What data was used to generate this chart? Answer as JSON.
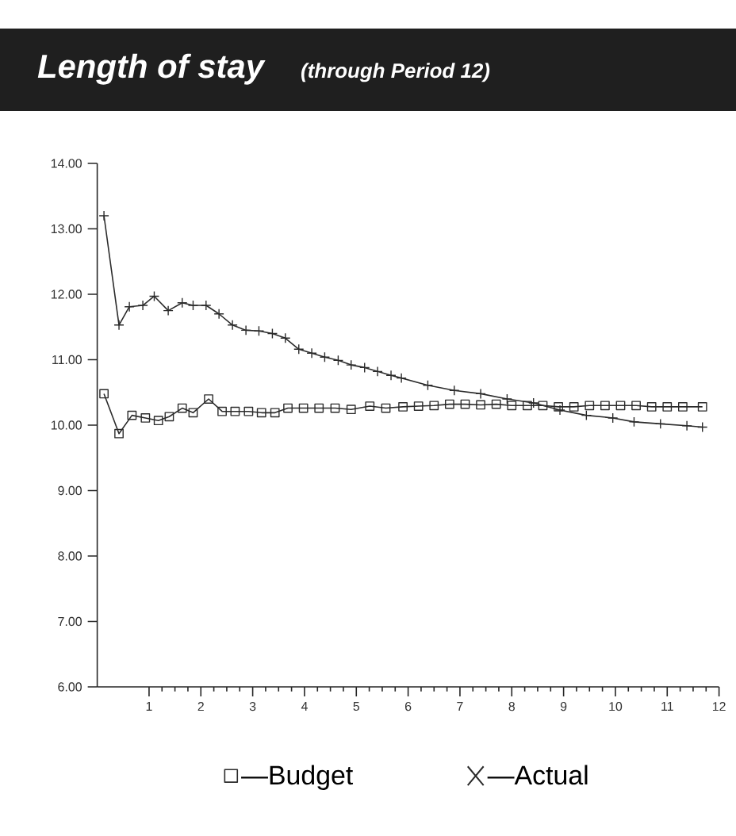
{
  "chart_data": {
    "type": "line",
    "title": "Length of stay",
    "subtitle": "(through Period 12)",
    "xlim": [
      0,
      12
    ],
    "xticks": [
      1,
      2,
      3,
      4,
      5,
      6,
      7,
      8,
      9,
      10,
      11,
      12
    ],
    "ylim": [
      6,
      14
    ],
    "yticks": [
      {
        "value": 6,
        "label": "6.00"
      },
      {
        "value": 7,
        "label": "7.00"
      },
      {
        "value": 8,
        "label": "8.00"
      },
      {
        "value": 9,
        "label": "9.00"
      },
      {
        "value": 10,
        "label": "10.00"
      },
      {
        "value": 11,
        "label": "11.00"
      },
      {
        "value": 12,
        "label": "12.00"
      },
      {
        "value": 13,
        "label": "13.00"
      },
      {
        "value": 14,
        "label": "14.00"
      }
    ],
    "legend": "bottom",
    "series": [
      {
        "name": "—Budget",
        "color": "#2b2b2b",
        "marker": "square",
        "x": [
          0.13,
          0.42,
          0.67,
          0.93,
          1.18,
          1.39,
          1.64,
          1.85,
          2.15,
          2.41,
          2.66,
          2.92,
          3.17,
          3.43,
          3.68,
          3.98,
          4.28,
          4.59,
          4.9,
          5.26,
          5.57,
          5.9,
          6.2,
          6.5,
          6.8,
          7.1,
          7.4,
          7.7,
          8.0,
          8.3,
          8.6,
          8.9,
          9.2,
          9.5,
          9.8,
          10.1,
          10.4,
          10.7,
          11.0,
          11.3,
          11.68
        ],
        "values": [
          10.48,
          9.87,
          10.15,
          10.11,
          10.07,
          10.13,
          10.26,
          10.19,
          10.4,
          10.21,
          10.21,
          10.21,
          10.19,
          10.19,
          10.26,
          10.26,
          10.26,
          10.26,
          10.24,
          10.29,
          10.26,
          10.28,
          10.29,
          10.3,
          10.32,
          10.32,
          10.31,
          10.32,
          10.3,
          10.3,
          10.3,
          10.28,
          10.28,
          10.3,
          10.3,
          10.3,
          10.3,
          10.28,
          10.28,
          10.28,
          10.28
        ]
      },
      {
        "name": "—Actual",
        "color": "#2b2b2b",
        "marker": "cross",
        "x": [
          0.13,
          0.42,
          0.62,
          0.88,
          1.1,
          1.37,
          1.64,
          1.85,
          2.1,
          2.35,
          2.61,
          2.87,
          3.12,
          3.38,
          3.63,
          3.89,
          4.14,
          4.39,
          4.65,
          4.9,
          5.16,
          5.41,
          5.67,
          5.87,
          6.38,
          6.89,
          7.4,
          7.91,
          8.42,
          8.93,
          9.44,
          9.95,
          10.36,
          10.87,
          11.38,
          11.68
        ],
        "values": [
          13.2,
          11.53,
          11.81,
          11.83,
          11.97,
          11.75,
          11.87,
          11.83,
          11.83,
          11.7,
          11.53,
          11.45,
          11.44,
          11.4,
          11.33,
          11.16,
          11.1,
          11.04,
          10.99,
          10.92,
          10.88,
          10.82,
          10.76,
          10.72,
          10.61,
          10.53,
          10.48,
          10.4,
          10.34,
          10.23,
          10.15,
          10.11,
          10.05,
          10.02,
          9.99,
          9.97
        ]
      }
    ]
  }
}
